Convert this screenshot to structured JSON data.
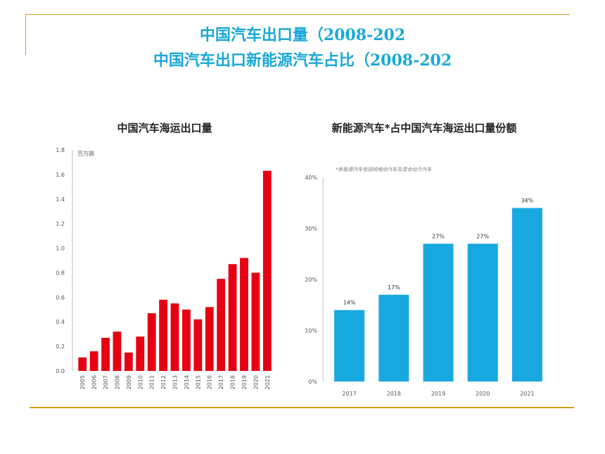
{
  "slide": {
    "title_line1": "中国汽车出口量（2008-202",
    "title_line2": "中国汽车出口新能源汽车占比（2008-202",
    "accent_color": "#19a8d6",
    "rule_color": "#d4a017"
  },
  "chart_data": [
    {
      "type": "bar",
      "title": "中国汽车海运出口量",
      "unit": "百万辆",
      "categories": [
        "2005",
        "2006",
        "2007",
        "2008",
        "2009",
        "2010",
        "2011",
        "2012",
        "2013",
        "2014",
        "2015",
        "2016",
        "2017",
        "2018",
        "2019",
        "2020",
        "2021"
      ],
      "values": [
        0.11,
        0.16,
        0.27,
        0.32,
        0.15,
        0.28,
        0.47,
        0.58,
        0.55,
        0.5,
        0.42,
        0.52,
        0.75,
        0.87,
        0.92,
        0.8,
        1.63
      ],
      "ylim": [
        0,
        1.8
      ],
      "yticks": [
        "0.0",
        "0.2",
        "0.4",
        "0.6",
        "0.8",
        "1.0",
        "1.2",
        "1.4",
        "1.6",
        "1.8"
      ],
      "color": "#e60012",
      "grid": false
    },
    {
      "type": "bar",
      "title": "新能源汽车*占中国汽车海运出口量份额",
      "note": "*新能源汽车包括纯电动汽车及混合动力汽车",
      "categories": [
        "2017",
        "2018",
        "2019",
        "2020",
        "2021"
      ],
      "values": [
        14,
        17,
        27,
        27,
        34
      ],
      "data_labels": [
        "14%",
        "17%",
        "27%",
        "27%",
        "34%"
      ],
      "ylim": [
        0,
        40
      ],
      "yticks": [
        "0%",
        "10%",
        "20%",
        "30%",
        "40%"
      ],
      "color": "#18a8e0",
      "grid": false
    }
  ]
}
